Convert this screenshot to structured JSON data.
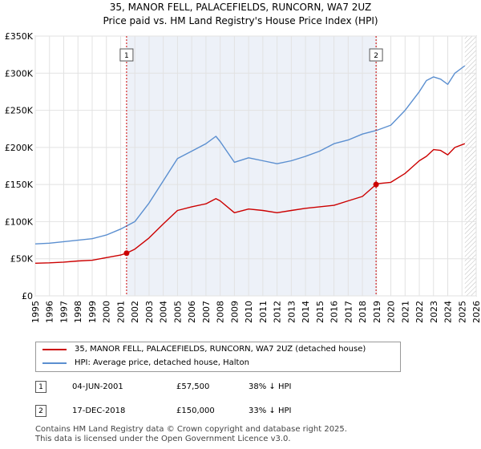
{
  "chart_data": {
    "type": "line",
    "title": "35, MANOR FELL, PALACEFIELDS, RUNCORN, WA7 2UZ",
    "subtitle": "Price paid vs. HM Land Registry's House Price Index (HPI)",
    "xlabel": "",
    "ylabel": "",
    "xlim": [
      1995,
      2026
    ],
    "ylim": [
      0,
      350000
    ],
    "x_ticks": [
      1995,
      1996,
      1997,
      1998,
      1999,
      2000,
      2001,
      2002,
      2003,
      2004,
      2005,
      2006,
      2007,
      2008,
      2009,
      2010,
      2011,
      2012,
      2013,
      2014,
      2015,
      2016,
      2017,
      2018,
      2019,
      2020,
      2021,
      2022,
      2023,
      2024,
      2025,
      2026
    ],
    "y_ticks": [
      {
        "value": 0,
        "label": "£0"
      },
      {
        "value": 50000,
        "label": "£50K"
      },
      {
        "value": 100000,
        "label": "£100K"
      },
      {
        "value": 150000,
        "label": "£150K"
      },
      {
        "value": 200000,
        "label": "£200K"
      },
      {
        "value": 250000,
        "label": "£250K"
      },
      {
        "value": 300000,
        "label": "£300K"
      },
      {
        "value": 350000,
        "label": "£350K"
      }
    ],
    "grid": true,
    "shade_between": [
      2001.42,
      2018.96
    ],
    "future_hatch_from": 2025.2,
    "series": [
      {
        "name": "35, MANOR FELL, PALACEFIELDS, RUNCORN, WA7 2UZ (detached house)",
        "color": "#cc0000",
        "x": [
          1995,
          1996,
          1997,
          1998,
          1999,
          2000,
          2001,
          2001.42,
          2002,
          2003,
          2004,
          2005,
          2006,
          2007,
          2007.7,
          2008,
          2009,
          2010,
          2011,
          2012,
          2013,
          2014,
          2015,
          2016,
          2017,
          2018,
          2018.96,
          2019,
          2020,
          2021,
          2022,
          2022.5,
          2023,
          2023.5,
          2024,
          2024.5,
          2025.2
        ],
        "y": [
          44000,
          44500,
          45500,
          47000,
          48000,
          51500,
          55000,
          57500,
          63000,
          78000,
          97000,
          115000,
          120000,
          124000,
          131000,
          128000,
          112000,
          117000,
          115000,
          112000,
          115000,
          118000,
          120000,
          122000,
          128000,
          134000,
          150000,
          151000,
          153000,
          165000,
          182000,
          188000,
          197000,
          196000,
          190000,
          200000,
          205000
        ]
      },
      {
        "name": "HPI: Average price, detached house, Halton",
        "color": "#5b8fd0",
        "x": [
          1995,
          1996,
          1997,
          1998,
          1999,
          2000,
          2001,
          2002,
          2003,
          2004,
          2005,
          2006,
          2007,
          2007.7,
          2008,
          2009,
          2010,
          2011,
          2012,
          2013,
          2014,
          2015,
          2016,
          2017,
          2018,
          2019,
          2020,
          2021,
          2022,
          2022.5,
          2023,
          2023.5,
          2024,
          2024.5,
          2025.2
        ],
        "y": [
          70000,
          71000,
          73000,
          75000,
          77000,
          82000,
          90000,
          100000,
          125000,
          155000,
          185000,
          195000,
          205000,
          215000,
          208000,
          180000,
          186000,
          182000,
          178000,
          182000,
          188000,
          195000,
          205000,
          210000,
          218000,
          223000,
          230000,
          250000,
          275000,
          290000,
          295000,
          292000,
          285000,
          300000,
          310000
        ]
      }
    ],
    "annotations": [
      {
        "label": "1",
        "x": 2001.42,
        "y": 57500
      },
      {
        "label": "2",
        "x": 2018.96,
        "y": 150000
      }
    ]
  },
  "legend": {
    "property_label": "35, MANOR FELL, PALACEFIELDS, RUNCORN, WA7 2UZ (detached house)",
    "hpi_label": "HPI: Average price, detached house, Halton"
  },
  "transactions": [
    {
      "badge": "1",
      "date": "04-JUN-2001",
      "price": "£57,500",
      "hpi": "38% ↓ HPI"
    },
    {
      "badge": "2",
      "date": "17-DEC-2018",
      "price": "£150,000",
      "hpi": "33% ↓ HPI"
    }
  ],
  "footer": {
    "line1": "Contains HM Land Registry data © Crown copyright and database right 2025.",
    "line2": "This data is licensed under the Open Government Licence v3.0."
  }
}
